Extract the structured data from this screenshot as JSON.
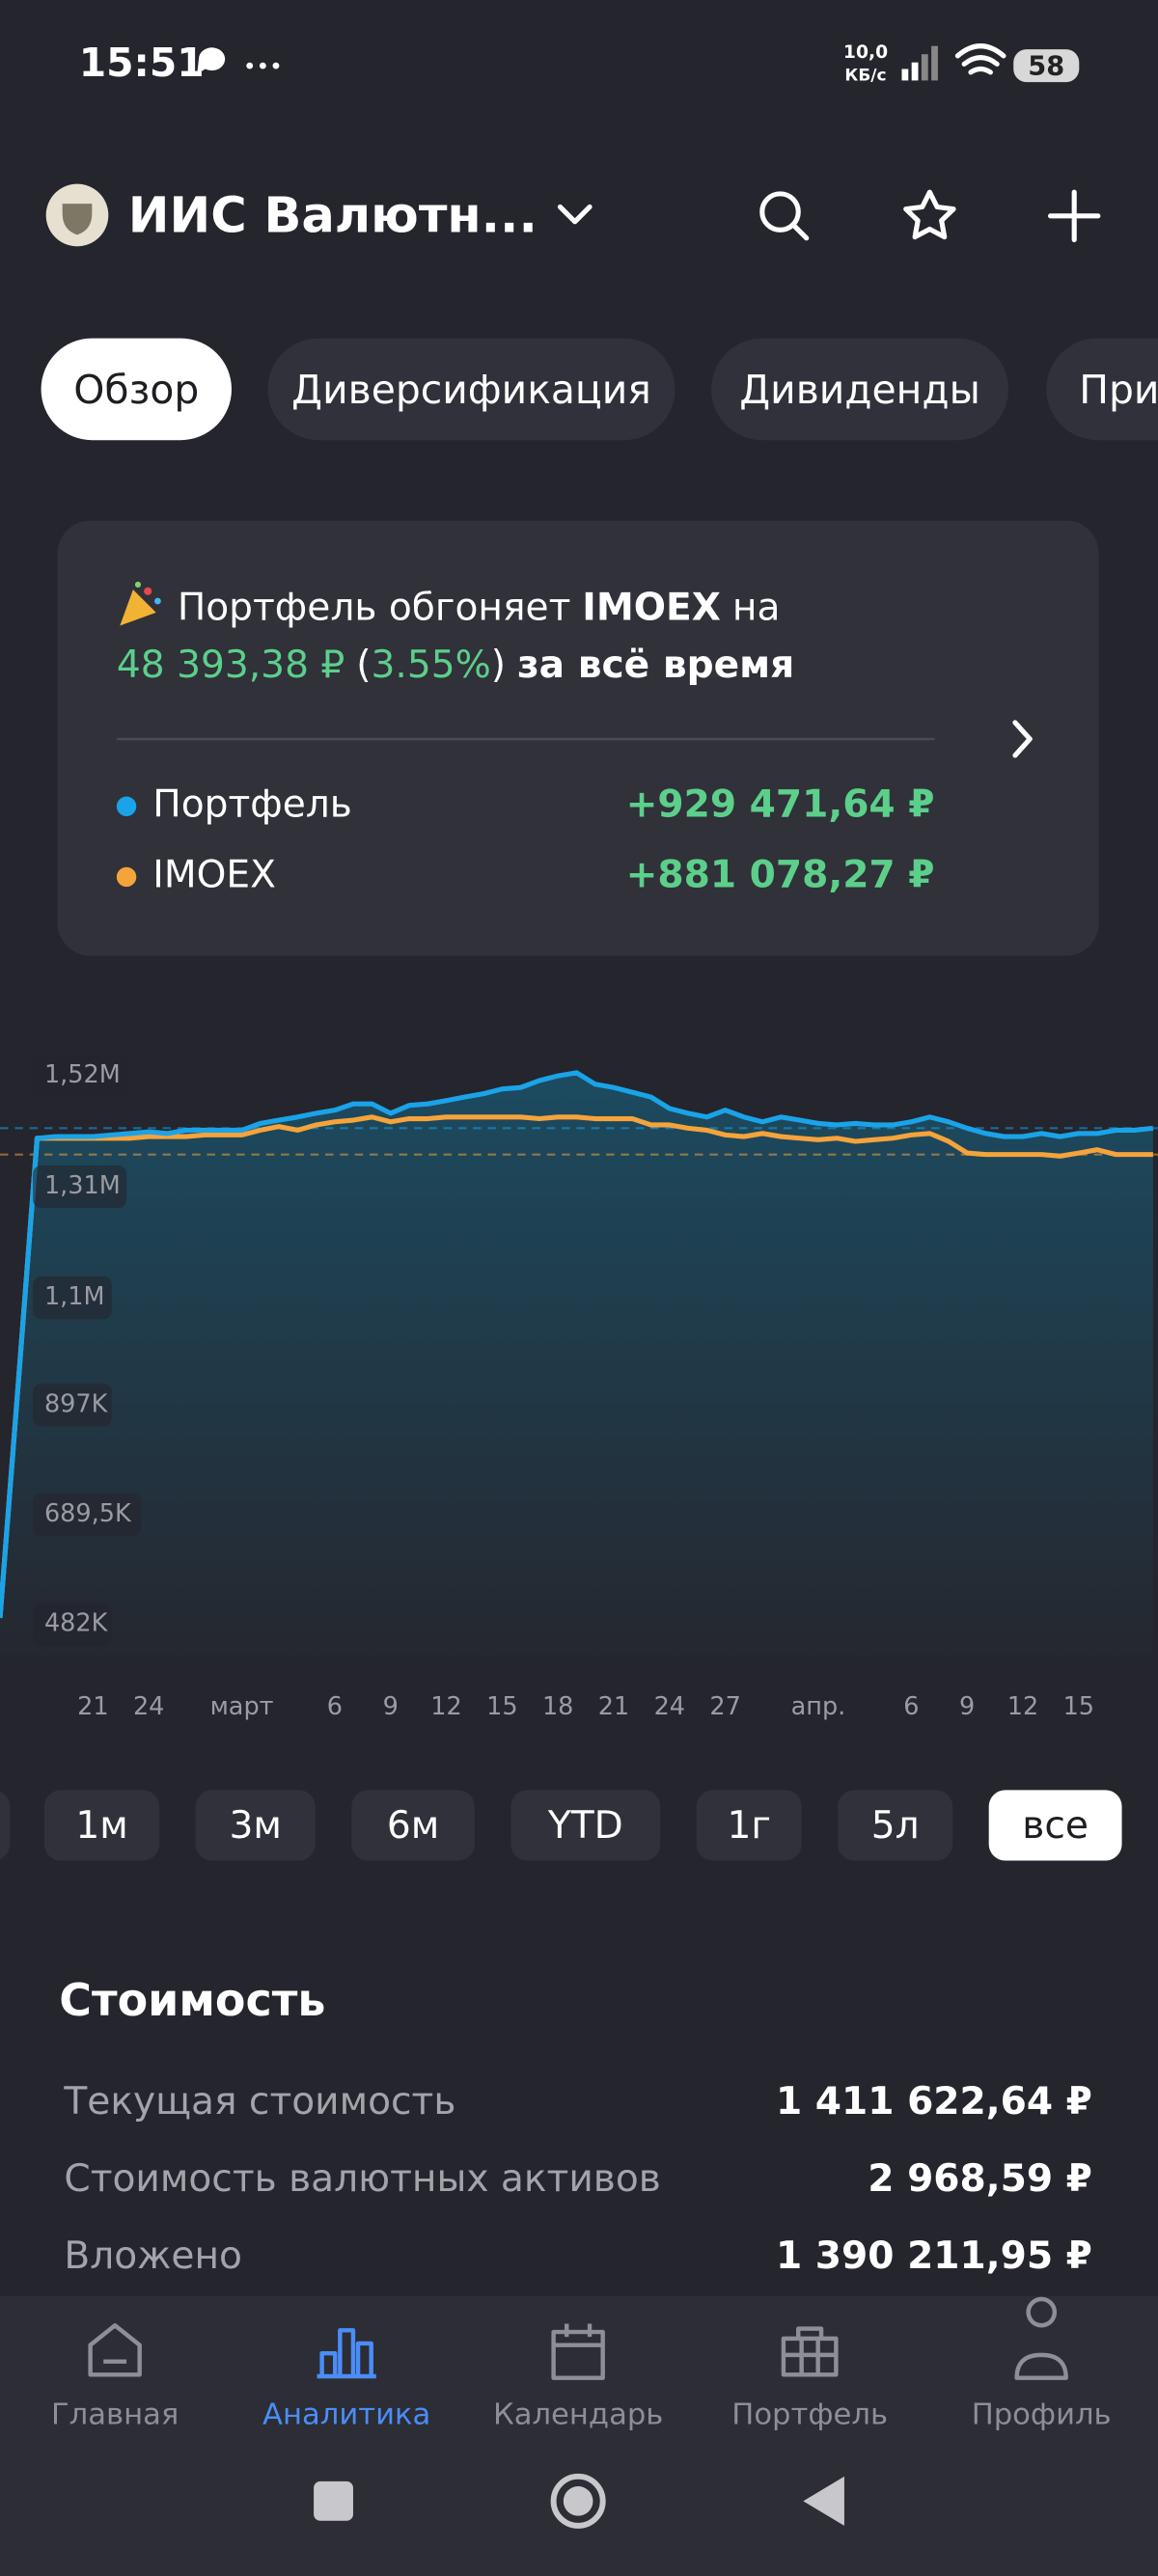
{
  "status_bar": {
    "time": "15:51",
    "network_speed": "10,0",
    "network_unit": "КБ/с",
    "battery": "58"
  },
  "header": {
    "title": "ИИС Валютн..."
  },
  "tabs": {
    "items": [
      "Обзор",
      "Диверсификация",
      "Дивиденды",
      "При"
    ],
    "active": 0
  },
  "card": {
    "line1": {
      "before": "Портфель обгоняет",
      "highlight": "IMOEX",
      "after": "на"
    },
    "line2": {
      "amount": "48 393,38 ₽",
      "open": "(",
      "percent": "3.55%",
      "close": ")",
      "tail": "за всё время"
    },
    "legend_values": [
      "+929 471,64 ₽",
      "+881 078,27 ₽"
    ]
  },
  "chart_data": {
    "type": "line",
    "categories": [
      null,
      null,
      null,
      null,
      null,
      "21",
      null,
      null,
      "24",
      null,
      null,
      null,
      null,
      "март",
      null,
      null,
      null,
      null,
      "6",
      null,
      null,
      "9",
      null,
      null,
      "12",
      null,
      null,
      "15",
      null,
      null,
      "18",
      null,
      null,
      "21",
      null,
      null,
      "24",
      null,
      null,
      "27",
      null,
      null,
      null,
      null,
      "апр.",
      null,
      null,
      null,
      null,
      "6",
      null,
      null,
      "9",
      null,
      null,
      "12",
      null,
      null,
      "15",
      null,
      null,
      null,
      null
    ],
    "series": [
      {
        "name": "Портфель",
        "color": "#1aa3e8",
        "values": [
          494000,
          945000,
          1402000,
          1405000,
          1405000,
          1405000,
          1408000,
          1411000,
          1414000,
          1411000,
          1417000,
          1417000,
          1417000,
          1417000,
          1430000,
          1436000,
          1442000,
          1449000,
          1455000,
          1467000,
          1467000,
          1449000,
          1464000,
          1467000,
          1473000,
          1480000,
          1486000,
          1495000,
          1498000,
          1511000,
          1520000,
          1526000,
          1504000,
          1498000,
          1489000,
          1480000,
          1458000,
          1449000,
          1442000,
          1455000,
          1442000,
          1433000,
          1442000,
          1436000,
          1430000,
          1427000,
          1430000,
          1427000,
          1427000,
          1433000,
          1442000,
          1433000,
          1421000,
          1411000,
          1405000,
          1405000,
          1411000,
          1405000,
          1411000,
          1411000,
          1417000,
          1417000,
          1421000
        ]
      },
      {
        "name": "IMOEX",
        "color": "#f5a33b",
        "values": [
          494000,
          945000,
          1402000,
          1402000,
          1402000,
          1402000,
          1402000,
          1402000,
          1405000,
          1405000,
          1405000,
          1408000,
          1408000,
          1408000,
          1417000,
          1424000,
          1417000,
          1427000,
          1433000,
          1436000,
          1442000,
          1433000,
          1439000,
          1439000,
          1442000,
          1442000,
          1442000,
          1442000,
          1442000,
          1439000,
          1442000,
          1442000,
          1439000,
          1439000,
          1439000,
          1427000,
          1427000,
          1421000,
          1417000,
          1408000,
          1405000,
          1411000,
          1405000,
          1402000,
          1399000,
          1402000,
          1396000,
          1399000,
          1402000,
          1408000,
          1411000,
          1396000,
          1374000,
          1371000,
          1371000,
          1371000,
          1371000,
          1368000,
          1374000,
          1380000,
          1371000,
          1371000,
          1371000
        ]
      }
    ],
    "ylim": [
      417000,
      1598000
    ],
    "yticks": [
      {
        "value": 1520000,
        "label": "1,52M"
      },
      {
        "value": 1310000,
        "label": "1,31M"
      },
      {
        "value": 1100000,
        "label": "1,1M"
      },
      {
        "value": 897000,
        "label": "897K"
      },
      {
        "value": 689500,
        "label": "689,5K"
      },
      {
        "value": 482000,
        "label": "482K"
      }
    ],
    "grid": false
  },
  "periods": {
    "items": [
      "1м",
      "3м",
      "6м",
      "YTD",
      "1г",
      "5л",
      "все"
    ],
    "active": 6
  },
  "stats": {
    "title": "Стоимость",
    "rows": [
      [
        "Текущая стоимость",
        "1 411 622,64 ₽"
      ],
      [
        "Стоимость валютных активов",
        "2 968,59 ₽"
      ],
      [
        "Вложено",
        "1 390 211,95 ₽"
      ]
    ]
  },
  "nav": {
    "items": [
      "Главная",
      "Аналитика",
      "Календарь",
      "Портфель",
      "Профиль"
    ],
    "active": 1
  }
}
